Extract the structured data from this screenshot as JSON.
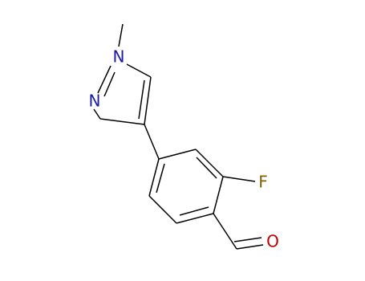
{
  "atoms": {
    "n1": "N",
    "n2": "N",
    "f": "F",
    "o": "O"
  }
}
